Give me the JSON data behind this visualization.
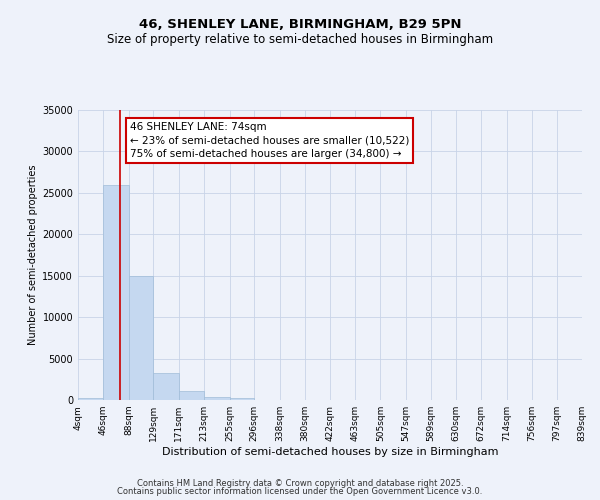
{
  "title": "46, SHENLEY LANE, BIRMINGHAM, B29 5PN",
  "subtitle": "Size of property relative to semi-detached houses in Birmingham",
  "xlabel": "Distribution of semi-detached houses by size in Birmingham",
  "ylabel": "Number of semi-detached properties",
  "bar_left_edges": [
    4,
    46,
    88,
    129,
    171,
    213,
    255,
    296,
    338,
    380,
    422,
    463,
    505,
    547,
    589,
    630,
    672,
    714,
    756,
    797
  ],
  "bar_widths": [
    42,
    42,
    41,
    42,
    42,
    42,
    41,
    42,
    42,
    42,
    41,
    42,
    42,
    42,
    41,
    42,
    42,
    42,
    41,
    42
  ],
  "bar_heights": [
    200,
    26000,
    15000,
    3200,
    1100,
    400,
    200,
    50,
    20,
    10,
    5,
    3,
    2,
    1,
    1,
    1,
    0,
    0,
    0,
    0
  ],
  "bar_color": "#c5d8f0",
  "bar_edge_color": "#a0bcd8",
  "property_x": 74,
  "property_label": "46 SHENLEY LANE: 74sqm",
  "pct_smaller": 23,
  "pct_larger": 75,
  "count_smaller": 10522,
  "count_larger": 34800,
  "vline_color": "#cc0000",
  "annotation_box_color": "#cc0000",
  "ylim": [
    0,
    35000
  ],
  "yticks": [
    0,
    5000,
    10000,
    15000,
    20000,
    25000,
    30000,
    35000
  ],
  "xtick_labels": [
    "4sqm",
    "46sqm",
    "88sqm",
    "129sqm",
    "171sqm",
    "213sqm",
    "255sqm",
    "296sqm",
    "338sqm",
    "380sqm",
    "422sqm",
    "463sqm",
    "505sqm",
    "547sqm",
    "589sqm",
    "630sqm",
    "672sqm",
    "714sqm",
    "756sqm",
    "797sqm",
    "839sqm"
  ],
  "xtick_positions": [
    4,
    46,
    88,
    129,
    171,
    213,
    255,
    296,
    338,
    380,
    422,
    463,
    505,
    547,
    589,
    630,
    672,
    714,
    756,
    797,
    839
  ],
  "grid_color": "#c8d4e8",
  "background_color": "#eef2fa",
  "plot_bg_color": "#eef2fa",
  "footer1": "Contains HM Land Registry data © Crown copyright and database right 2025.",
  "footer2": "Contains public sector information licensed under the Open Government Licence v3.0.",
  "title_fontsize": 9.5,
  "subtitle_fontsize": 8.5,
  "ylabel_fontsize": 7,
  "xlabel_fontsize": 8,
  "ytick_fontsize": 7,
  "xtick_fontsize": 6.5,
  "annotation_fontsize": 7.5,
  "footer_fontsize": 6
}
